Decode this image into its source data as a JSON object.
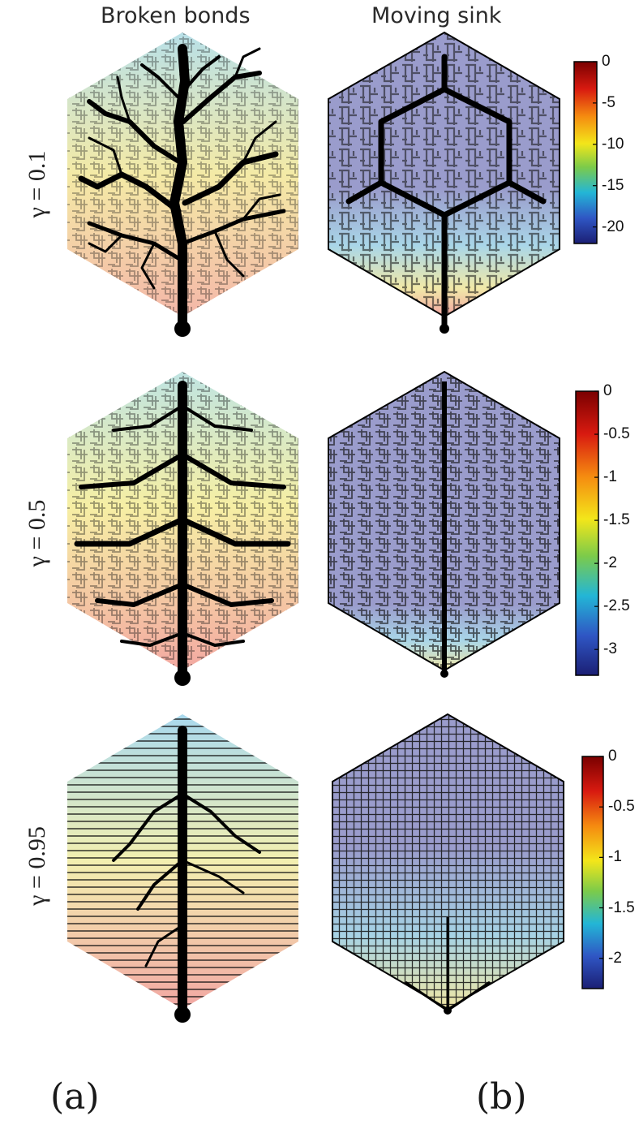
{
  "column_titles": {
    "left": "Broken bonds",
    "right": "Moving sink"
  },
  "rows": [
    {
      "label": "γ = 0.1",
      "colorbar_ticks": [
        "0",
        "-5",
        "-10",
        "-15",
        "-20"
      ],
      "colorbar_range": [
        -22,
        0
      ]
    },
    {
      "label": "γ = 0.5",
      "colorbar_ticks": [
        "0",
        "-0.5",
        "-1",
        "-1.5",
        "-2",
        "-2.5",
        "-3"
      ],
      "colorbar_range": [
        -3.3,
        0
      ]
    },
    {
      "label": "γ = 0.95",
      "colorbar_ticks": [
        "0",
        "-0.5",
        "-1",
        "-1.5",
        "-2"
      ],
      "colorbar_range": [
        -2.3,
        0
      ]
    }
  ],
  "panel_labels": {
    "a": "(a)",
    "b": "(b)"
  },
  "colors": {
    "network": "#000000",
    "uniform_fill": "#9a9ccc",
    "colormap": [
      "#7a0000",
      "#d81a10",
      "#f58b10",
      "#f3e61a",
      "#7ccb4a",
      "#23b6d6",
      "#2f56c4",
      "#1b1f74"
    ]
  }
}
